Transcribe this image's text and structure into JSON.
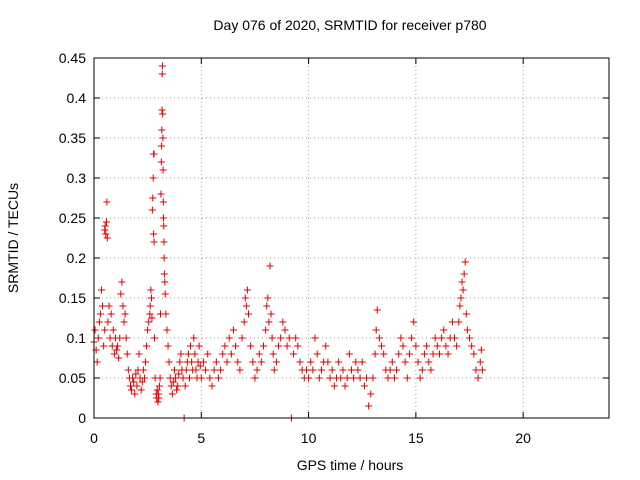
{
  "chart_data": {
    "type": "scatter",
    "title": "Day 076 of 2020, SRMTID for receiver p780",
    "xlabel": "GPS time / hours",
    "ylabel": "SRMTID / TECUs",
    "xlim": [
      0,
      24
    ],
    "ylim": [
      0,
      0.45
    ],
    "xticks": [
      0,
      5,
      10,
      15,
      20
    ],
    "yticks": [
      0,
      0.05,
      0.1,
      0.15,
      0.2,
      0.25,
      0.3,
      0.35,
      0.4,
      0.45
    ],
    "xtick_labels": [
      "0",
      "5",
      "10",
      "15",
      "20"
    ],
    "ytick_labels": [
      "0",
      "0.05",
      "0.1",
      "0.15",
      "0.2",
      "0.25",
      "0.3",
      "0.35",
      "0.4",
      "0.45"
    ],
    "grid": true,
    "marker": "+",
    "color": "#e00000",
    "series": [
      {
        "name": "SRMTID",
        "points": [
          [
            0.0,
            0.095
          ],
          [
            0.05,
            0.11
          ],
          [
            0.1,
            0.085
          ],
          [
            0.15,
            0.07
          ],
          [
            0.2,
            0.1
          ],
          [
            0.25,
            0.12
          ],
          [
            0.3,
            0.13
          ],
          [
            0.35,
            0.16
          ],
          [
            0.4,
            0.14
          ],
          [
            0.45,
            0.09
          ],
          [
            0.5,
            0.11
          ],
          [
            0.5,
            0.235
          ],
          [
            0.52,
            0.24
          ],
          [
            0.55,
            0.23
          ],
          [
            0.6,
            0.27
          ],
          [
            0.58,
            0.245
          ],
          [
            0.62,
            0.225
          ],
          [
            0.65,
            0.12
          ],
          [
            0.7,
            0.14
          ],
          [
            0.75,
            0.1
          ],
          [
            0.8,
            0.13
          ],
          [
            0.85,
            0.09
          ],
          [
            0.9,
            0.11
          ],
          [
            0.95,
            0.08
          ],
          [
            1.0,
            0.1
          ],
          [
            1.05,
            0.085
          ],
          [
            1.1,
            0.09
          ],
          [
            1.15,
            0.075
          ],
          [
            1.2,
            0.1
          ],
          [
            1.25,
            0.155
          ],
          [
            1.3,
            0.17
          ],
          [
            1.35,
            0.14
          ],
          [
            1.4,
            0.12
          ],
          [
            1.45,
            0.13
          ],
          [
            1.5,
            0.1
          ],
          [
            1.55,
            0.08
          ],
          [
            1.6,
            0.06
          ],
          [
            1.65,
            0.05
          ],
          [
            1.7,
            0.04
          ],
          [
            1.75,
            0.035
          ],
          [
            1.8,
            0.05
          ],
          [
            1.85,
            0.045
          ],
          [
            1.9,
            0.03
          ],
          [
            1.95,
            0.055
          ],
          [
            2.0,
            0.04
          ],
          [
            2.05,
            0.06
          ],
          [
            2.1,
            0.08
          ],
          [
            2.15,
            0.05
          ],
          [
            2.2,
            0.035
          ],
          [
            2.25,
            0.045
          ],
          [
            2.3,
            0.06
          ],
          [
            2.35,
            0.05
          ],
          [
            2.4,
            0.07
          ],
          [
            2.45,
            0.09
          ],
          [
            2.5,
            0.11
          ],
          [
            2.55,
            0.12
          ],
          [
            2.6,
            0.13
          ],
          [
            2.62,
            0.14
          ],
          [
            2.65,
            0.16
          ],
          [
            2.68,
            0.15
          ],
          [
            2.7,
            0.125
          ],
          [
            2.72,
            0.26
          ],
          [
            2.74,
            0.275
          ],
          [
            2.76,
            0.3
          ],
          [
            2.78,
            0.33
          ],
          [
            2.8,
            0.33
          ],
          [
            2.78,
            0.23
          ],
          [
            2.8,
            0.22
          ],
          [
            2.82,
            0.1
          ],
          [
            2.85,
            0.05
          ],
          [
            2.9,
            0.03
          ],
          [
            2.92,
            0.025
          ],
          [
            2.95,
            0.035
          ],
          [
            2.98,
            0.02
          ],
          [
            3.0,
            0.03
          ],
          [
            3.02,
            0.025
          ],
          [
            3.05,
            0.04
          ],
          [
            3.08,
            0.05
          ],
          [
            3.1,
            0.13
          ],
          [
            3.12,
            0.28
          ],
          [
            3.14,
            0.32
          ],
          [
            3.15,
            0.34
          ],
          [
            3.16,
            0.36
          ],
          [
            3.17,
            0.385
          ],
          [
            3.18,
            0.43
          ],
          [
            3.19,
            0.44
          ],
          [
            3.2,
            0.38
          ],
          [
            3.21,
            0.35
          ],
          [
            3.22,
            0.31
          ],
          [
            3.23,
            0.27
          ],
          [
            3.24,
            0.25
          ],
          [
            3.25,
            0.24
          ],
          [
            3.26,
            0.22
          ],
          [
            3.27,
            0.2
          ],
          [
            3.28,
            0.18
          ],
          [
            3.3,
            0.17
          ],
          [
            3.32,
            0.155
          ],
          [
            3.35,
            0.13
          ],
          [
            3.4,
            0.11
          ],
          [
            3.45,
            0.09
          ],
          [
            3.5,
            0.07
          ],
          [
            3.55,
            0.05
          ],
          [
            3.6,
            0.04
          ],
          [
            3.65,
            0.03
          ],
          [
            3.7,
            0.045
          ],
          [
            3.75,
            0.06
          ],
          [
            3.8,
            0.05
          ],
          [
            3.85,
            0.035
          ],
          [
            3.9,
            0.04
          ],
          [
            3.95,
            0.055
          ],
          [
            4.0,
            0.07
          ],
          [
            4.05,
            0.08
          ],
          [
            4.1,
            0.06
          ],
          [
            4.15,
            0.05
          ],
          [
            4.2,
            0.0
          ],
          [
            4.25,
            0.04
          ],
          [
            4.3,
            0.06
          ],
          [
            4.35,
            0.07
          ],
          [
            4.4,
            0.08
          ],
          [
            4.45,
            0.05
          ],
          [
            4.5,
            0.09
          ],
          [
            4.55,
            0.07
          ],
          [
            4.6,
            0.06
          ],
          [
            4.65,
            0.1
          ],
          [
            4.7,
            0.08
          ],
          [
            4.75,
            0.06
          ],
          [
            4.8,
            0.05
          ],
          [
            4.85,
            0.07
          ],
          [
            4.9,
            0.09
          ],
          [
            4.95,
            0.065
          ],
          [
            5.0,
            0.05
          ],
          [
            5.1,
            0.07
          ],
          [
            5.2,
            0.06
          ],
          [
            5.3,
            0.08
          ],
          [
            5.4,
            0.05
          ],
          [
            5.5,
            0.04
          ],
          [
            5.6,
            0.06
          ],
          [
            5.7,
            0.07
          ],
          [
            5.8,
            0.05
          ],
          [
            5.9,
            0.06
          ],
          [
            6.0,
            0.08
          ],
          [
            6.1,
            0.09
          ],
          [
            6.2,
            0.07
          ],
          [
            6.3,
            0.1
          ],
          [
            6.4,
            0.08
          ],
          [
            6.5,
            0.11
          ],
          [
            6.6,
            0.09
          ],
          [
            6.7,
            0.07
          ],
          [
            6.8,
            0.06
          ],
          [
            6.9,
            0.1
          ],
          [
            7.0,
            0.12
          ],
          [
            7.05,
            0.15
          ],
          [
            7.1,
            0.14
          ],
          [
            7.15,
            0.16
          ],
          [
            7.2,
            0.13
          ],
          [
            7.3,
            0.09
          ],
          [
            7.4,
            0.07
          ],
          [
            7.5,
            0.05
          ],
          [
            7.6,
            0.06
          ],
          [
            7.7,
            0.08
          ],
          [
            7.8,
            0.07
          ],
          [
            7.9,
            0.09
          ],
          [
            8.0,
            0.11
          ],
          [
            8.05,
            0.14
          ],
          [
            8.1,
            0.15
          ],
          [
            8.15,
            0.12
          ],
          [
            8.2,
            0.19
          ],
          [
            8.25,
            0.13
          ],
          [
            8.3,
            0.1
          ],
          [
            8.35,
            0.08
          ],
          [
            8.4,
            0.06
          ],
          [
            8.5,
            0.07
          ],
          [
            8.6,
            0.09
          ],
          [
            8.7,
            0.1
          ],
          [
            8.8,
            0.12
          ],
          [
            8.9,
            0.11
          ],
          [
            9.0,
            0.09
          ],
          [
            9.1,
            0.1
          ],
          [
            9.2,
            0.0
          ],
          [
            9.3,
            0.08
          ],
          [
            9.4,
            0.1
          ],
          [
            9.5,
            0.09
          ],
          [
            9.6,
            0.07
          ],
          [
            9.7,
            0.06
          ],
          [
            9.8,
            0.05
          ],
          [
            9.9,
            0.06
          ],
          [
            10.0,
            0.05
          ],
          [
            10.1,
            0.07
          ],
          [
            10.2,
            0.06
          ],
          [
            10.3,
            0.1
          ],
          [
            10.4,
            0.08
          ],
          [
            10.5,
            0.05
          ],
          [
            10.6,
            0.06
          ],
          [
            10.7,
            0.07
          ],
          [
            10.8,
            0.09
          ],
          [
            10.9,
            0.07
          ],
          [
            11.0,
            0.05
          ],
          [
            11.1,
            0.06
          ],
          [
            11.2,
            0.04
          ],
          [
            11.3,
            0.05
          ],
          [
            11.4,
            0.07
          ],
          [
            11.5,
            0.05
          ],
          [
            11.6,
            0.06
          ],
          [
            11.7,
            0.04
          ],
          [
            11.8,
            0.05
          ],
          [
            11.9,
            0.08
          ],
          [
            12.0,
            0.06
          ],
          [
            12.1,
            0.05
          ],
          [
            12.2,
            0.07
          ],
          [
            12.3,
            0.06
          ],
          [
            12.4,
            0.05
          ],
          [
            12.5,
            0.07
          ],
          [
            12.6,
            0.04
          ],
          [
            12.7,
            0.05
          ],
          [
            12.8,
            0.015
          ],
          [
            12.9,
            0.03
          ],
          [
            13.0,
            0.05
          ],
          [
            13.1,
            0.08
          ],
          [
            13.15,
            0.11
          ],
          [
            13.2,
            0.135
          ],
          [
            13.3,
            0.1
          ],
          [
            13.4,
            0.09
          ],
          [
            13.5,
            0.08
          ],
          [
            13.6,
            0.06
          ],
          [
            13.7,
            0.05
          ],
          [
            13.8,
            0.06
          ],
          [
            13.9,
            0.07
          ],
          [
            14.0,
            0.05
          ],
          [
            14.1,
            0.06
          ],
          [
            14.2,
            0.08
          ],
          [
            14.3,
            0.1
          ],
          [
            14.4,
            0.09
          ],
          [
            14.5,
            0.07
          ],
          [
            14.6,
            0.05
          ],
          [
            14.7,
            0.08
          ],
          [
            14.8,
            0.1
          ],
          [
            14.9,
            0.12
          ],
          [
            15.0,
            0.09
          ],
          [
            15.1,
            0.07
          ],
          [
            15.2,
            0.05
          ],
          [
            15.3,
            0.06
          ],
          [
            15.4,
            0.08
          ],
          [
            15.5,
            0.09
          ],
          [
            15.6,
            0.07
          ],
          [
            15.7,
            0.06
          ],
          [
            15.8,
            0.08
          ],
          [
            15.9,
            0.1
          ],
          [
            16.0,
            0.09
          ],
          [
            16.1,
            0.08
          ],
          [
            16.2,
            0.1
          ],
          [
            16.3,
            0.11
          ],
          [
            16.4,
            0.09
          ],
          [
            16.5,
            0.08
          ],
          [
            16.6,
            0.1
          ],
          [
            16.7,
            0.12
          ],
          [
            16.8,
            0.1
          ],
          [
            16.9,
            0.09
          ],
          [
            17.0,
            0.12
          ],
          [
            17.05,
            0.14
          ],
          [
            17.1,
            0.15
          ],
          [
            17.15,
            0.17
          ],
          [
            17.2,
            0.16
          ],
          [
            17.25,
            0.18
          ],
          [
            17.3,
            0.195
          ],
          [
            17.35,
            0.13
          ],
          [
            17.4,
            0.11
          ],
          [
            17.5,
            0.1
          ],
          [
            17.6,
            0.09
          ],
          [
            17.7,
            0.08
          ],
          [
            17.8,
            0.06
          ],
          [
            17.9,
            0.05
          ],
          [
            18.0,
            0.07
          ],
          [
            18.05,
            0.085
          ],
          [
            18.1,
            0.06
          ]
        ]
      }
    ]
  }
}
